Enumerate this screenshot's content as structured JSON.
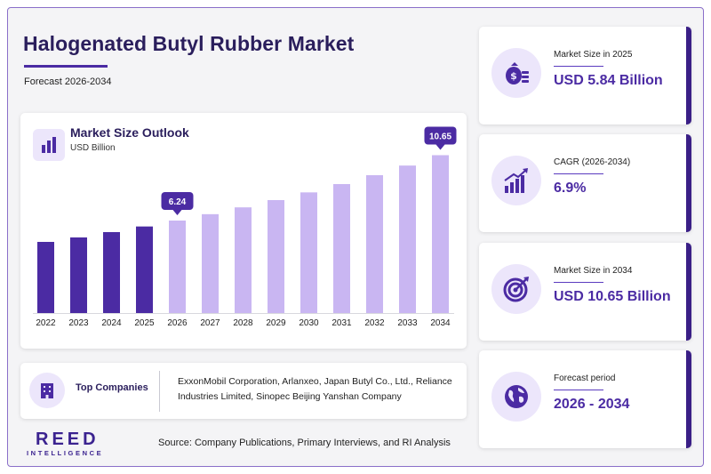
{
  "header": {
    "title": "Halogenated Butyl Rubber Market",
    "subtitle": "Forecast 2026-2034"
  },
  "chart_data": {
    "type": "bar",
    "title": "Market Size Outlook",
    "unit": "USD Billion",
    "categories": [
      "2022",
      "2023",
      "2024",
      "2025",
      "2026",
      "2027",
      "2028",
      "2029",
      "2030",
      "2031",
      "2032",
      "2033",
      "2034"
    ],
    "values": [
      4.8,
      5.1,
      5.46,
      5.84,
      6.24,
      6.67,
      7.13,
      7.62,
      8.14,
      8.7,
      9.3,
      9.95,
      10.65
    ],
    "historical_years": [
      "2022",
      "2023",
      "2024",
      "2025"
    ],
    "callouts": [
      {
        "category": "2026",
        "label": "6.24"
      },
      {
        "category": "2034",
        "label": "10.65"
      }
    ],
    "colors": {
      "historical": "#4b2ba3",
      "forecast": "#c9b6f2",
      "callout": "#4b2ba3"
    },
    "ylim": [
      0,
      12
    ]
  },
  "companies": {
    "label": "Top Companies",
    "list": "ExxonMobil Corporation, Arlanxeo, Japan Butyl Co., Ltd., Reliance Industries Limited, Sinopec Beijing Yanshan Company"
  },
  "stats": [
    {
      "label": "Market Size in 2025",
      "value": "USD 5.84 Billion",
      "icon": "money-bag-icon"
    },
    {
      "label": "CAGR (2026-2034)",
      "value": "6.9%",
      "icon": "growth-chart-icon"
    },
    {
      "label": "Market Size in 2034",
      "value": "USD 10.65 Billion",
      "icon": "target-icon"
    },
    {
      "label": "Forecast period",
      "value": "2026 - 2034",
      "icon": "globe-icon"
    }
  ],
  "footer": {
    "logo_main": "REED",
    "logo_sub": "INTELLIGENCE",
    "source": "Source: Company Publications, Primary Interviews, and RI Analysis"
  }
}
